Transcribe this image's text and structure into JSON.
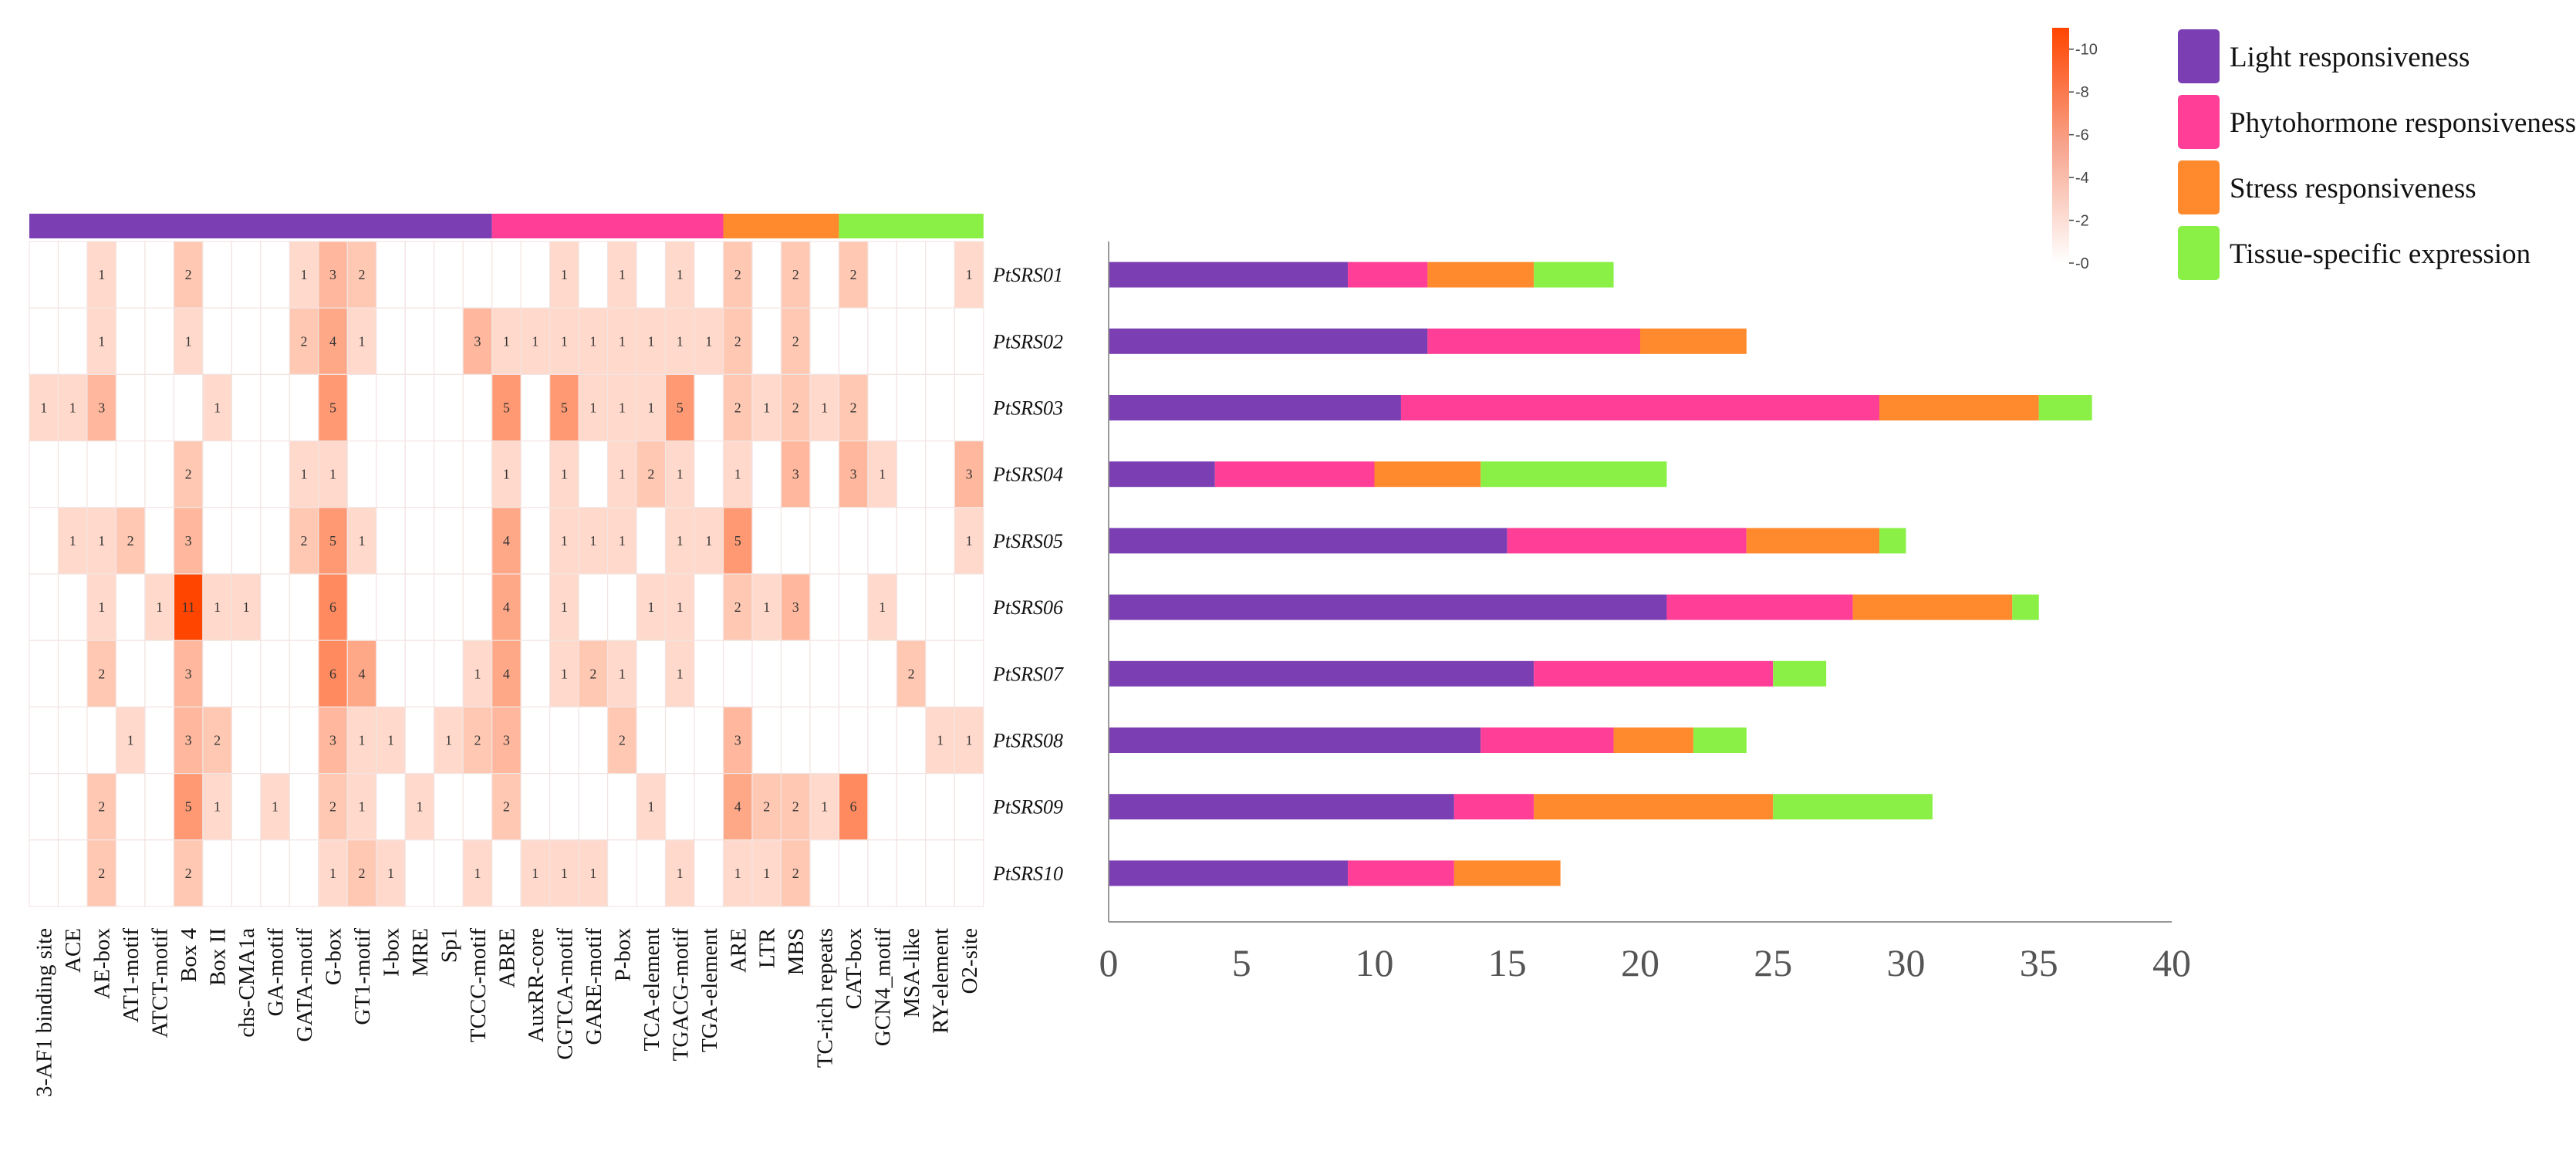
{
  "chart_data": [
    {
      "type": "heatmap",
      "columns": [
        "3-AF1 binding site",
        "ACE",
        "AE-box",
        "AT1-motif",
        "ATCT-motif",
        "Box 4",
        "Box II",
        "chs-CMA1a",
        "GA-motif",
        "GATA-motif",
        "G-box",
        "GT1-motif",
        "I-box",
        "MRE",
        "Sp1",
        "TCCC-motif",
        "ABRE",
        "AuxRR-core",
        "CGTCA-motif",
        "GARE-motif",
        "P-box",
        "TCA-element",
        "TGACG-motif",
        "TGA-element",
        "ARE",
        "LTR",
        "MBS",
        "TC-rich repeats",
        "CAT-box",
        "GCN4_motif",
        "MSA-like",
        "RY-element",
        "O2-site"
      ],
      "rows": [
        "PtSRS01",
        "PtSRS02",
        "PtSRS03",
        "PtSRS04",
        "PtSRS05",
        "PtSRS06",
        "PtSRS07",
        "PtSRS08",
        "PtSRS09",
        "PtSRS10"
      ],
      "values": [
        [
          0,
          0,
          1,
          0,
          0,
          2,
          0,
          0,
          0,
          1,
          3,
          2,
          0,
          0,
          0,
          0,
          0,
          0,
          1,
          0,
          1,
          0,
          1,
          0,
          2,
          0,
          2,
          0,
          2,
          0,
          0,
          0,
          1
        ],
        [
          0,
          0,
          1,
          0,
          0,
          1,
          0,
          0,
          0,
          2,
          4,
          1,
          0,
          0,
          0,
          3,
          1,
          1,
          1,
          1,
          1,
          1,
          1,
          1,
          2,
          0,
          2,
          0,
          0,
          0,
          0,
          0,
          0
        ],
        [
          1,
          1,
          3,
          0,
          0,
          0,
          1,
          0,
          0,
          0,
          5,
          0,
          0,
          0,
          0,
          0,
          5,
          0,
          5,
          1,
          1,
          1,
          5,
          0,
          2,
          1,
          2,
          1,
          2,
          0,
          0,
          0,
          0
        ],
        [
          0,
          0,
          0,
          0,
          0,
          2,
          0,
          0,
          0,
          1,
          1,
          0,
          0,
          0,
          0,
          0,
          1,
          0,
          1,
          0,
          1,
          2,
          1,
          0,
          1,
          0,
          3,
          0,
          3,
          1,
          0,
          0,
          3
        ],
        [
          0,
          1,
          1,
          2,
          0,
          3,
          0,
          0,
          0,
          2,
          5,
          1,
          0,
          0,
          0,
          0,
          4,
          0,
          1,
          1,
          1,
          0,
          1,
          1,
          5,
          0,
          0,
          0,
          0,
          0,
          0,
          0,
          1
        ],
        [
          0,
          0,
          1,
          0,
          1,
          11,
          1,
          1,
          0,
          0,
          6,
          0,
          0,
          0,
          0,
          0,
          4,
          0,
          1,
          0,
          0,
          1,
          1,
          0,
          2,
          1,
          3,
          0,
          0,
          1,
          0,
          0,
          0
        ],
        [
          0,
          0,
          2,
          0,
          0,
          3,
          0,
          0,
          0,
          0,
          6,
          4,
          0,
          0,
          0,
          1,
          4,
          0,
          1,
          2,
          1,
          0,
          1,
          0,
          0,
          0,
          0,
          0,
          0,
          0,
          2,
          0,
          0
        ],
        [
          0,
          0,
          0,
          1,
          0,
          3,
          2,
          0,
          0,
          0,
          3,
          1,
          1,
          0,
          1,
          2,
          3,
          0,
          0,
          0,
          2,
          0,
          0,
          0,
          3,
          0,
          0,
          0,
          0,
          0,
          0,
          1,
          1
        ],
        [
          0,
          0,
          2,
          0,
          0,
          5,
          1,
          0,
          1,
          0,
          2,
          1,
          0,
          1,
          0,
          0,
          2,
          0,
          0,
          0,
          0,
          1,
          0,
          0,
          4,
          2,
          2,
          1,
          6,
          0,
          0,
          0,
          0
        ],
        [
          0,
          0,
          2,
          0,
          0,
          2,
          0,
          0,
          0,
          0,
          1,
          2,
          1,
          0,
          0,
          1,
          0,
          1,
          1,
          1,
          0,
          0,
          1,
          0,
          1,
          1,
          2,
          0,
          0,
          0,
          0,
          0,
          0
        ]
      ],
      "column_groups": [
        {
          "category": "Light responsiveness",
          "span": 16
        },
        {
          "category": "Phytohormone responsiveness",
          "span": 8
        },
        {
          "category": "Stress responsiveness",
          "span": 4
        },
        {
          "category": "Tissue-specific expression",
          "span": 5
        }
      ],
      "colorbar": {
        "min": 0,
        "max": 11,
        "ticks": [
          0,
          2,
          4,
          6,
          8,
          10
        ],
        "low_color": "#ffffff",
        "high_color": "#ff4500"
      }
    },
    {
      "type": "bar",
      "orientation": "horizontal",
      "stacked": true,
      "categories": [
        "PtSRS01",
        "PtSRS02",
        "PtSRS03",
        "PtSRS04",
        "PtSRS05",
        "PtSRS06",
        "PtSRS07",
        "PtSRS08",
        "PtSRS09",
        "PtSRS10"
      ],
      "series": [
        {
          "name": "Light responsiveness",
          "color": "#7b3fb3",
          "values": [
            9,
            12,
            11,
            4,
            15,
            21,
            16,
            14,
            13,
            9
          ]
        },
        {
          "name": "Phytohormone responsiveness",
          "color": "#ff3f97",
          "values": [
            3,
            8,
            18,
            6,
            9,
            7,
            9,
            5,
            3,
            4
          ]
        },
        {
          "name": "Stress responsiveness",
          "color": "#ff8a2e",
          "values": [
            4,
            4,
            6,
            4,
            5,
            6,
            0,
            3,
            9,
            4
          ]
        },
        {
          "name": "Tissue-specific expression",
          "color": "#8af046",
          "values": [
            3,
            0,
            2,
            7,
            1,
            1,
            2,
            2,
            6,
            0
          ]
        }
      ],
      "xlim": [
        0,
        40
      ],
      "xticks": [
        0,
        5,
        10,
        15,
        20,
        25,
        30,
        35,
        40
      ],
      "legend_position": "top-right"
    }
  ]
}
